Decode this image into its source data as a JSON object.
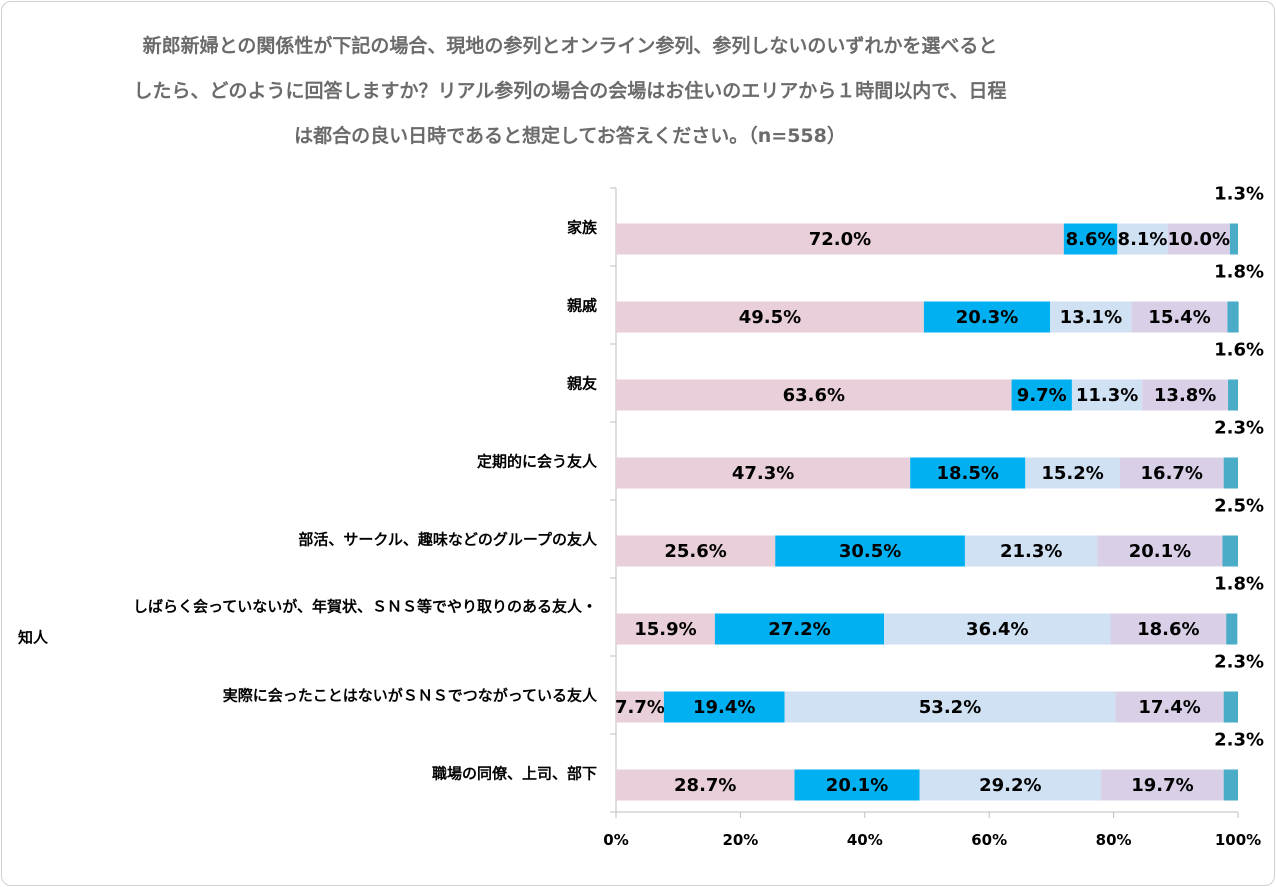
{
  "chart_data": {
    "type": "bar",
    "stacked": true,
    "orientation": "horizontal",
    "title_lines": [
      "新郎新婦との関係性が下記の場合、現地の参列とオンライン参列、参列しないのいずれかを選べると",
      "したら、どのように回答しますか？リアル参列の場合の会場はお住いのエリアから１時間以内で、日程",
      "は都合の良い日時であると想定してお答えください。（n=558）"
    ],
    "xlim": [
      0,
      100
    ],
    "x_ticks": [
      "0%",
      "20%",
      "40%",
      "60%",
      "80%",
      "100%"
    ],
    "grid": false,
    "legend": "none",
    "categories": [
      {
        "label_lines": [
          "家族"
        ]
      },
      {
        "label_lines": [
          "親戚"
        ]
      },
      {
        "label_lines": [
          "親友"
        ]
      },
      {
        "label_lines": [
          "定期的に会う友人"
        ]
      },
      {
        "label_lines": [
          "部活、サークル、趣味などのグループの友人"
        ]
      },
      {
        "label_lines": [
          "しばらく会っていないが、年賀状、ＳＮＳ等でやり取りのある友人・",
          "知人"
        ]
      },
      {
        "label_lines": [
          "実際に会ったことはないがＳＮＳでつながっている友人"
        ]
      },
      {
        "label_lines": [
          "職場の同僚、上司、部下"
        ]
      }
    ],
    "series": [
      {
        "color": "#e9cfd9",
        "values": [
          72.0,
          49.5,
          63.6,
          47.3,
          25.6,
          15.9,
          7.7,
          28.7
        ],
        "labels": [
          "72.0%",
          "49.5%",
          "63.6%",
          "47.3%",
          "25.6%",
          "15.9%",
          "7.7%",
          "28.7%"
        ]
      },
      {
        "color": "#00b0f0",
        "values": [
          8.6,
          20.3,
          9.7,
          18.5,
          30.5,
          27.2,
          19.4,
          20.1
        ],
        "labels": [
          "8.6%",
          "20.3%",
          "9.7%",
          "18.5%",
          "30.5%",
          "27.2%",
          "19.4%",
          "20.1%"
        ]
      },
      {
        "color": "#cfe1f3",
        "values": [
          8.1,
          13.1,
          11.3,
          15.2,
          21.3,
          36.4,
          53.2,
          29.2
        ],
        "labels": [
          "8.1%",
          "13.1%",
          "11.3%",
          "15.2%",
          "21.3%",
          "36.4%",
          "53.2%",
          "29.2%"
        ]
      },
      {
        "color": "#d9d0e8",
        "values": [
          10.0,
          15.4,
          13.8,
          16.7,
          20.1,
          18.6,
          17.4,
          19.7
        ],
        "labels": [
          "10.0%",
          "15.4%",
          "13.8%",
          "16.7%",
          "20.1%",
          "18.6%",
          "17.4%",
          "19.7%"
        ]
      },
      {
        "color": "#4aacc6",
        "values": [
          1.3,
          1.8,
          1.6,
          2.3,
          2.5,
          1.8,
          2.3,
          2.3
        ],
        "labels": [
          "1.3%",
          "1.8%",
          "1.6%",
          "2.3%",
          "2.5%",
          "1.8%",
          "2.3%",
          "2.3%"
        ]
      }
    ]
  }
}
